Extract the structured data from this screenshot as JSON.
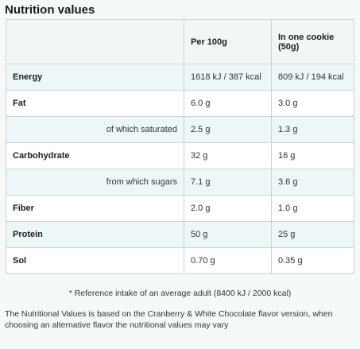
{
  "title": "Nutrition values",
  "columns": [
    "",
    "Per 100g",
    "In one cookie (50g)"
  ],
  "rows": [
    {
      "name": "Energy",
      "per100": "1618 kJ / 387 kcal",
      "cookie": "809 kJ / 194 kcal",
      "sub": false
    },
    {
      "name": "Fat",
      "per100": "6.0 g",
      "cookie": "3.0 g",
      "sub": false
    },
    {
      "name": "of which saturated",
      "per100": "2.5 g",
      "cookie": "1.3 g",
      "sub": true
    },
    {
      "name": "Carbohydrate",
      "per100": "32 g",
      "cookie": "16 g",
      "sub": false
    },
    {
      "name": "from which sugars",
      "per100": "7.1 g",
      "cookie": "3.6 g",
      "sub": true
    },
    {
      "name": "Fiber",
      "per100": "2.0 g",
      "cookie": "1.0 g",
      "sub": false
    },
    {
      "name": "Protein",
      "per100": "50 g",
      "cookie": "25 g",
      "sub": false
    },
    {
      "name": "Sol",
      "per100": "0.70 g",
      "cookie": "0.35 g",
      "sub": false
    }
  ],
  "reference_note": "* Reference intake of an average adult (8400 kJ / 2000 kcal)",
  "footnote": "The Nutritional Values is based on the Cranberry & White Chocolate flavor version, when choosing an alternative flavor the nutritional values may vary"
}
